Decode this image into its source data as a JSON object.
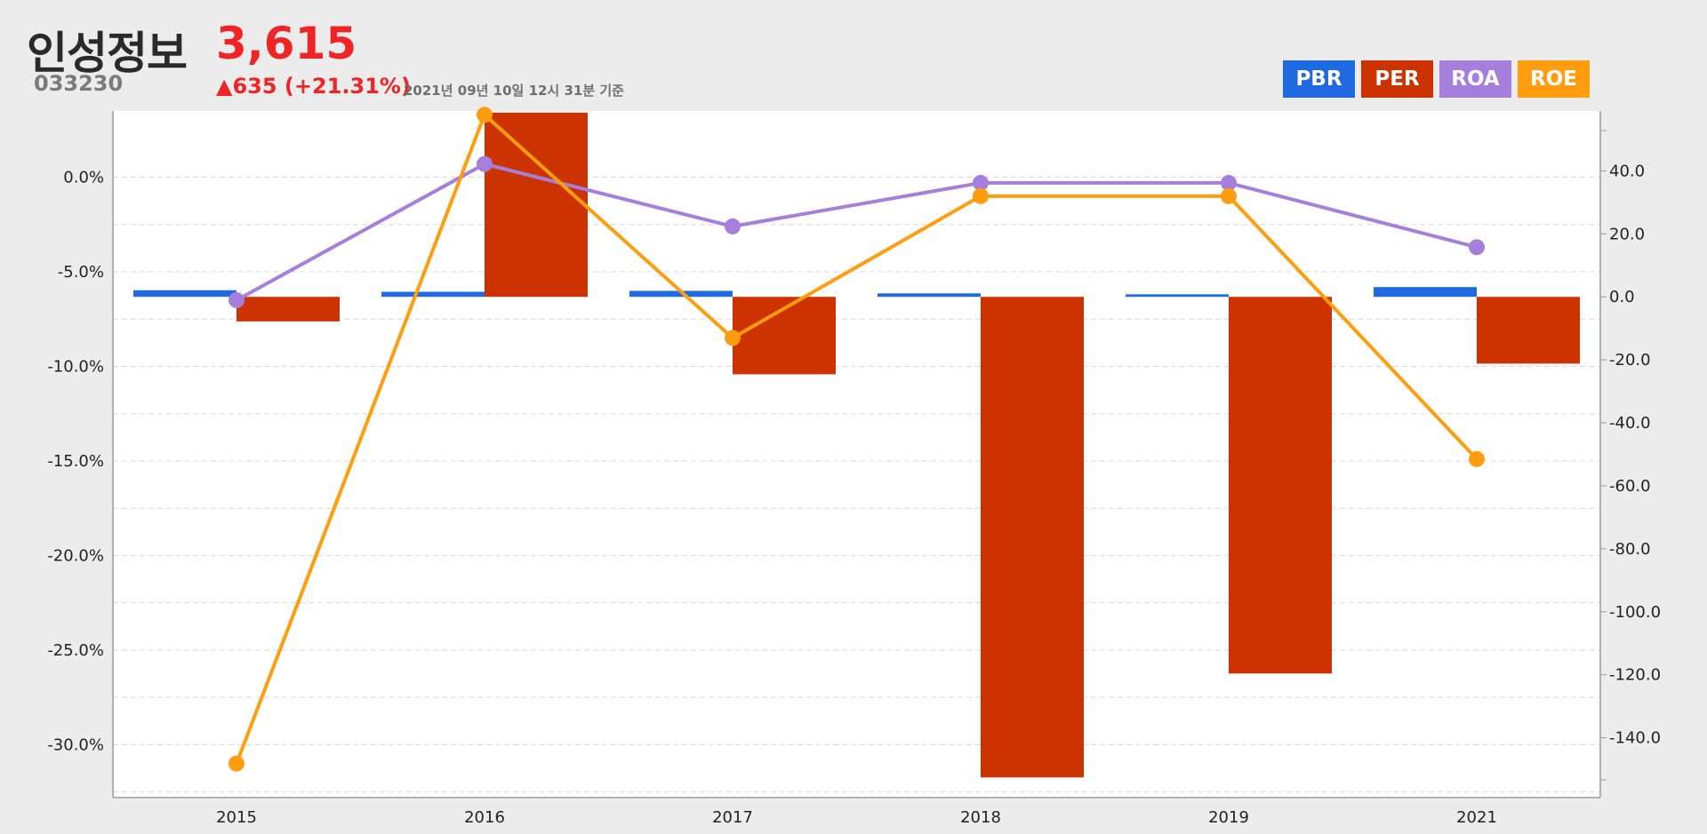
{
  "header": {
    "company_name": "인성정보",
    "stock_code": "033230",
    "price": "3,615",
    "change": "▲635 (+21.31%)",
    "timestamp": "2021년 09년 10일 12시 31분 기준"
  },
  "colors": {
    "PBR": "#1f6ae0",
    "PER": "#cc3300",
    "ROA": "#a67fdc",
    "ROE": "#ff9d0f"
  },
  "chart_data": {
    "type": "bar",
    "categories": [
      "2015",
      "2016",
      "2017",
      "2018",
      "2019",
      "2021"
    ],
    "legend": [
      "PBR",
      "PER",
      "ROA",
      "ROE"
    ],
    "legend_position": "top-right",
    "grid": true,
    "left_axis": {
      "ticks": [
        0,
        -5,
        -10,
        -15,
        -20,
        -25,
        -30
      ],
      "tick_labels": [
        "0.0%",
        "-5.0%",
        "-10.0%",
        "-15.0%",
        "-20.0%",
        "-25.0%",
        "-30.0%"
      ],
      "range": [
        -32.8,
        3.5
      ]
    },
    "right_axis": {
      "ticks": [
        40,
        20,
        0,
        -20,
        -40,
        -60,
        -80,
        -100,
        -120,
        -140
      ],
      "tick_labels": [
        "40.0",
        "20.0",
        "0.0",
        "-20.0",
        "-40.0",
        "-60.0",
        "-80.0",
        "-100.0",
        "-120.0",
        "-140.0"
      ],
      "range": [
        -159,
        59
      ]
    },
    "series": [
      {
        "name": "PBR",
        "type": "bar",
        "axis": "right",
        "values": [
          2.1,
          1.6,
          1.9,
          1.1,
          0.8,
          3.1
        ]
      },
      {
        "name": "PER",
        "type": "bar",
        "axis": "right",
        "values": [
          -7.8,
          58.5,
          -24.6,
          -152.6,
          -119.6,
          -21.2
        ]
      },
      {
        "name": "ROA",
        "type": "line",
        "axis": "left",
        "values": [
          -6.5,
          0.7,
          -2.6,
          -0.3,
          -0.3,
          -3.7
        ]
      },
      {
        "name": "ROE",
        "type": "line",
        "axis": "left",
        "values": [
          -31.0,
          3.3,
          -8.5,
          -1.0,
          -1.0,
          -14.9
        ]
      }
    ]
  }
}
